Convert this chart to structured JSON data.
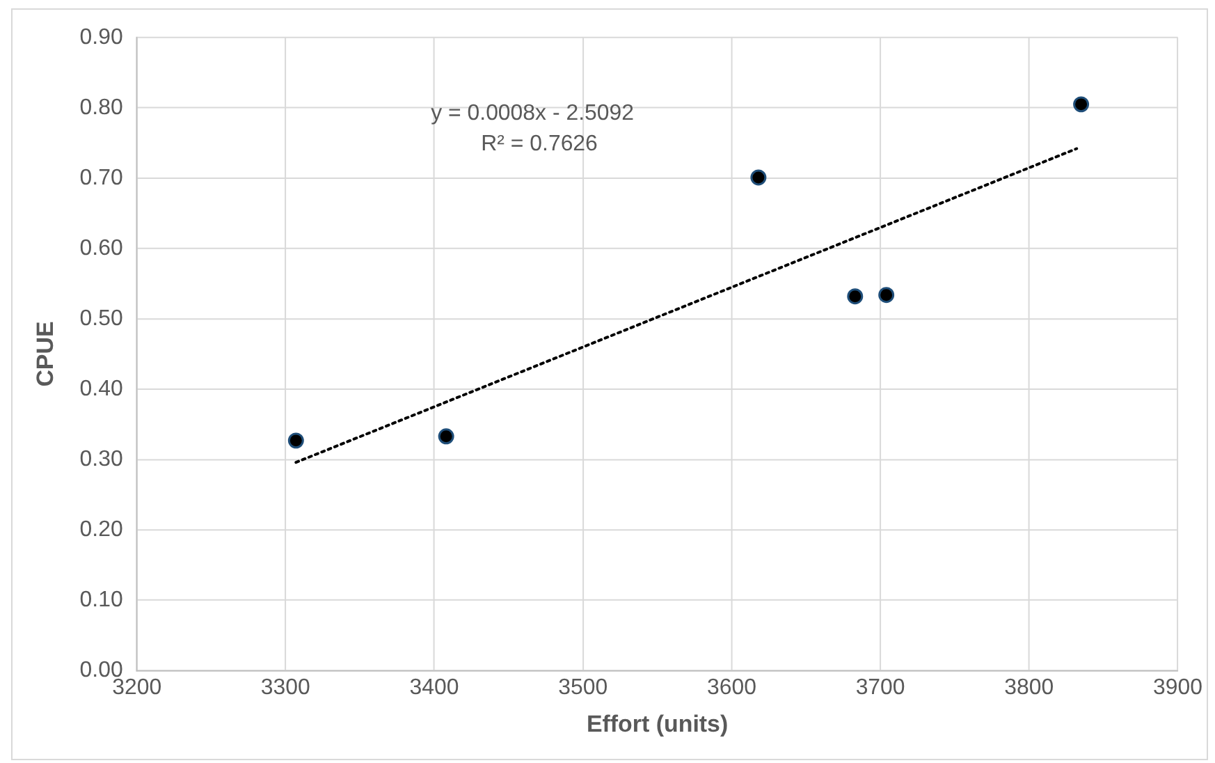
{
  "chart_data": {
    "type": "scatter",
    "xlabel": "Effort (units)",
    "ylabel": "CPUE",
    "xlim": [
      3200,
      3900
    ],
    "xticks": [
      3200,
      3300,
      3400,
      3500,
      3600,
      3700,
      3800,
      3900
    ],
    "ylim": [
      0,
      0.9
    ],
    "yticks": [
      {
        "value": 0,
        "label": "0.00"
      },
      {
        "value": 0.1,
        "label": "0.10"
      },
      {
        "value": 0.2,
        "label": "0.20"
      },
      {
        "value": 0.3,
        "label": "0.30"
      },
      {
        "value": 0.4,
        "label": "0.40"
      },
      {
        "value": 0.5,
        "label": "0.50"
      },
      {
        "value": 0.6,
        "label": "0.60"
      },
      {
        "value": 0.7,
        "label": "0.70"
      },
      {
        "value": 0.8,
        "label": "0.80"
      },
      {
        "value": 0.9,
        "label": "0.90"
      }
    ],
    "grid": true,
    "legend": false,
    "marker": "circle",
    "annotations": [
      "y = 0.0008x - 2.5092",
      "R² = 0.7626"
    ],
    "series": [
      {
        "color": "#000000",
        "x": [
          3307,
          3408,
          3618,
          3683,
          3704,
          3835
        ],
        "values": [
          0.327,
          0.333,
          0.701,
          0.532,
          0.534,
          0.805
        ]
      },
      {
        "type": "line",
        "color": "#000000",
        "line_style": "dotted",
        "marker": "none",
        "x": [
          3307,
          3832
        ],
        "values": [
          0.296,
          0.742
        ]
      }
    ]
  }
}
